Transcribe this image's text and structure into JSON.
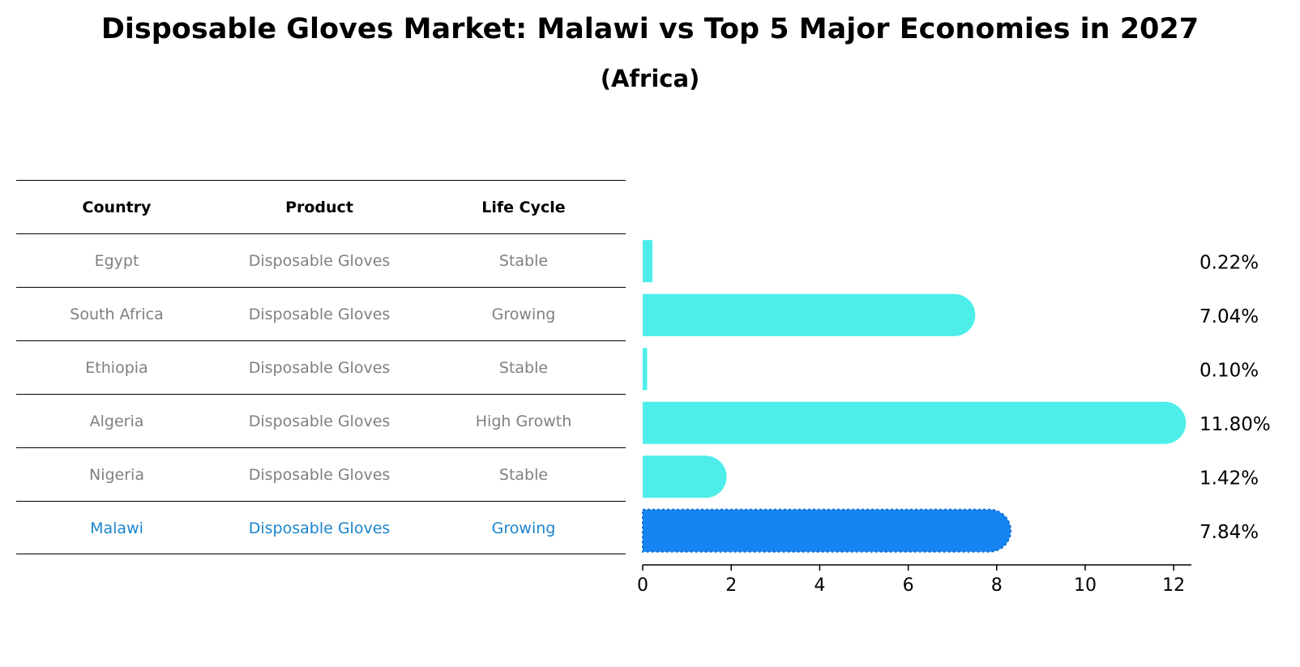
{
  "title": "Disposable Gloves Market: Malawi vs Top 5 Major Economies in 2027",
  "subtitle": "(Africa)",
  "table": {
    "headers": [
      "Country",
      "Product",
      "Life Cycle"
    ],
    "rows": [
      {
        "country": "Egypt",
        "product": "Disposable Gloves",
        "life_cycle": "Stable"
      },
      {
        "country": "South Africa",
        "product": "Disposable Gloves",
        "life_cycle": "Growing"
      },
      {
        "country": "Ethiopia",
        "product": "Disposable Gloves",
        "life_cycle": "Stable"
      },
      {
        "country": "Algeria",
        "product": "Disposable Gloves",
        "life_cycle": "High Growth"
      },
      {
        "country": "Nigeria",
        "product": "Disposable Gloves",
        "life_cycle": "Stable"
      },
      {
        "country": "Malawi",
        "product": "Disposable Gloves",
        "life_cycle": "Growing"
      }
    ]
  },
  "chart_data": {
    "type": "bar",
    "orientation": "horizontal",
    "categories": [
      "Egypt",
      "South Africa",
      "Ethiopia",
      "Algeria",
      "Nigeria",
      "Malawi"
    ],
    "values": [
      0.22,
      7.04,
      0.1,
      11.8,
      1.42,
      7.84
    ],
    "value_labels": [
      "0.22%",
      "7.04%",
      "0.10%",
      "11.80%",
      "1.42%",
      "7.84%"
    ],
    "xlim": [
      0,
      12.4
    ],
    "xticks": [
      0,
      2,
      4,
      6,
      8,
      10,
      12
    ],
    "grid": false,
    "highlight": "Malawi",
    "colors": {
      "default": "#4deeea",
      "highlight": "#1685f2",
      "highlight_text": "#1b84cc",
      "muted_text": "#808080"
    }
  }
}
